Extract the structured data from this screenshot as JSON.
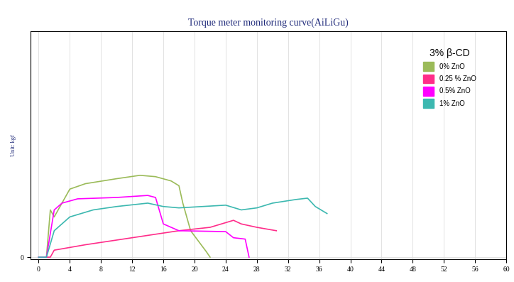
{
  "chart_data": {
    "type": "line",
    "title": "Torque meter monitoring curve(AiLiGu)",
    "y_label": "Unit: kgf",
    "legend_title": "3% β-CD",
    "xlim": [
      -1,
      60
    ],
    "xticks": [
      0,
      4,
      8,
      12,
      16,
      20,
      24,
      28,
      32,
      36,
      40,
      44,
      48,
      52,
      56,
      60
    ],
    "ylim": [
      -1,
      100
    ],
    "yticks": [
      0
    ],
    "grid": true,
    "legend": "upper right",
    "series": [
      {
        "name": "0% ZnO",
        "color": "#9bbb59",
        "x": [
          0,
          1,
          1.5,
          2,
          4,
          6,
          10,
          13,
          15,
          17,
          18,
          18.5,
          19.5,
          20.5,
          21.5,
          22
        ],
        "values": [
          0,
          0,
          20.9,
          17.8,
          30.1,
          32.5,
          34.7,
          36.2,
          35.6,
          33.7,
          31.6,
          23.9,
          11.7,
          7.1,
          2.5,
          0
        ]
      },
      {
        "name": "0.25 % ZnO",
        "color": "#ff2d8a",
        "x": [
          0,
          1.5,
          2,
          6,
          12,
          18,
          22,
          25,
          26,
          28,
          30.5
        ],
        "values": [
          0,
          0,
          3.1,
          5.5,
          8.6,
          11.7,
          13.2,
          16.3,
          14.7,
          13.2,
          11.7
        ]
      },
      {
        "name": "0.5% ZnO",
        "color": "#ff00ff",
        "x": [
          0,
          1,
          2,
          3,
          5,
          10,
          14,
          15,
          16,
          18,
          24,
          25,
          26.5,
          27
        ],
        "values": [
          0,
          0,
          20.9,
          23.9,
          25.8,
          26.4,
          27.3,
          26.4,
          14.7,
          11.7,
          11.3,
          8.6,
          8.0,
          0
        ]
      },
      {
        "name": "1% ZnO",
        "color": "#3cb8b0",
        "x": [
          0,
          1,
          2,
          4,
          7,
          10,
          14,
          16,
          18,
          24,
          26,
          28,
          30,
          33,
          34.5,
          35.5,
          37
        ],
        "values": [
          0,
          0,
          11.7,
          17.8,
          20.9,
          22.4,
          23.9,
          22.4,
          21.8,
          23.0,
          20.9,
          21.8,
          23.9,
          25.5,
          26.1,
          22.4,
          19.3
        ]
      }
    ]
  }
}
